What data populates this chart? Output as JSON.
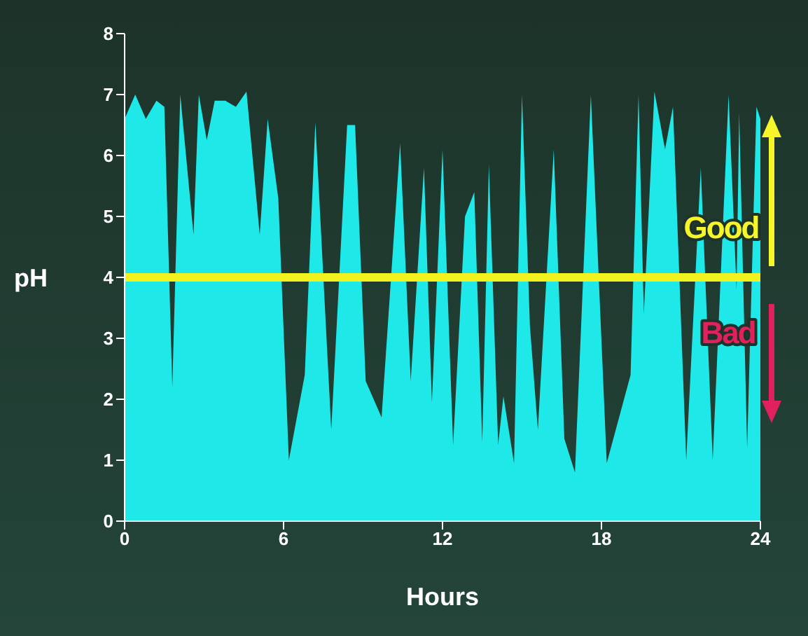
{
  "chart_data": {
    "type": "area",
    "xlabel": "Hours",
    "ylabel": "pH",
    "x": [
      0,
      0.4,
      0.8,
      1.2,
      1.5,
      1.8,
      2.1,
      2.6,
      2.8,
      3.1,
      3.4,
      3.8,
      4.2,
      4.6,
      5.1,
      5.4,
      5.8,
      6.2,
      6.8,
      7.2,
      7.8,
      8.4,
      8.7,
      9.1,
      9.7,
      10.4,
      10.8,
      11.3,
      11.6,
      12.0,
      12.4,
      12.85,
      13.2,
      13.5,
      13.75,
      14.1,
      14.3,
      14.7,
      15.0,
      15.3,
      15.6,
      16.2,
      16.6,
      17.0,
      17.6,
      18.2,
      19.1,
      19.4,
      19.6,
      20.0,
      20.4,
      20.7,
      21.2,
      21.75,
      22.2,
      22.8,
      23.1,
      23.2,
      23.5,
      23.85,
      24
    ],
    "series": [
      {
        "color": "#1ee8e8",
        "values": [
          6.6,
          7.0,
          6.6,
          6.9,
          6.8,
          2.2,
          7.0,
          4.7,
          7.0,
          6.25,
          6.9,
          6.9,
          6.8,
          7.05,
          4.7,
          6.6,
          5.3,
          1.0,
          2.4,
          6.55,
          1.5,
          6.5,
          6.5,
          2.3,
          1.7,
          6.2,
          2.3,
          5.8,
          1.95,
          6.1,
          1.25,
          5.0,
          5.4,
          1.3,
          5.85,
          1.25,
          2.05,
          0.95,
          7.0,
          3.2,
          1.5,
          6.1,
          1.35,
          0.8,
          7.0,
          0.95,
          2.4,
          7.0,
          3.4,
          7.05,
          6.1,
          6.8,
          1.0,
          5.8,
          1.0,
          7.0,
          3.8,
          6.7,
          1.2,
          6.8,
          6.6
        ]
      }
    ],
    "xlim": [
      0,
      24
    ],
    "ylim": [
      0,
      8
    ],
    "xticks": [
      0,
      6,
      12,
      18,
      24
    ],
    "yticks": [
      0,
      1,
      2,
      3,
      4,
      5,
      6,
      7,
      8
    ],
    "grid": false,
    "ref_lines": [
      {
        "axis": "y",
        "value": 4,
        "color": "#f2f21e"
      }
    ],
    "annotations": [
      "Good",
      "Bad"
    ]
  }
}
